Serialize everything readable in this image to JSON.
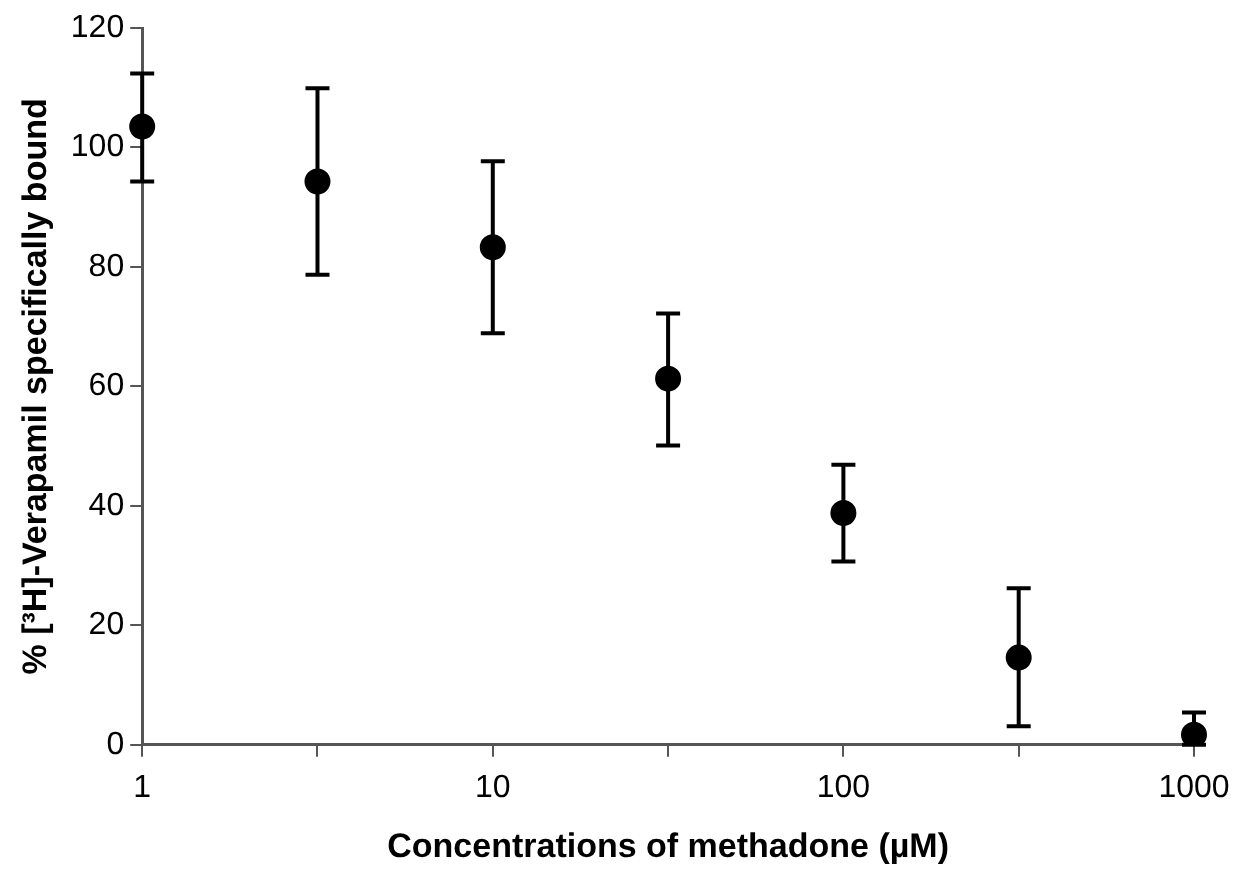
{
  "chart_data": {
    "type": "scatter",
    "xlabel": "Concentrations of methadone (µM)",
    "ylabel": "% [³H]-Verapamil specifically bound",
    "categories": [
      "1",
      null,
      "10",
      null,
      "100",
      null,
      "1000"
    ],
    "series": [
      {
        "color": "#000000",
        "values": [
          103.5,
          94.3,
          83.3,
          61.3,
          38.8,
          14.6,
          1.7
        ],
        "errors": [
          [
            94.3,
            112.4
          ],
          [
            78.7,
            109.9
          ],
          [
            68.9,
            97.7
          ],
          [
            50.1,
            72.2
          ],
          [
            30.7,
            46.9
          ],
          [
            3.1,
            26.2
          ],
          [
            0,
            5.4
          ]
        ]
      }
    ],
    "ylim": [
      0,
      120
    ],
    "yticks": [
      0,
      20,
      40,
      60,
      80,
      100,
      120
    ],
    "grid": false,
    "legend": false,
    "marker": "circle"
  }
}
